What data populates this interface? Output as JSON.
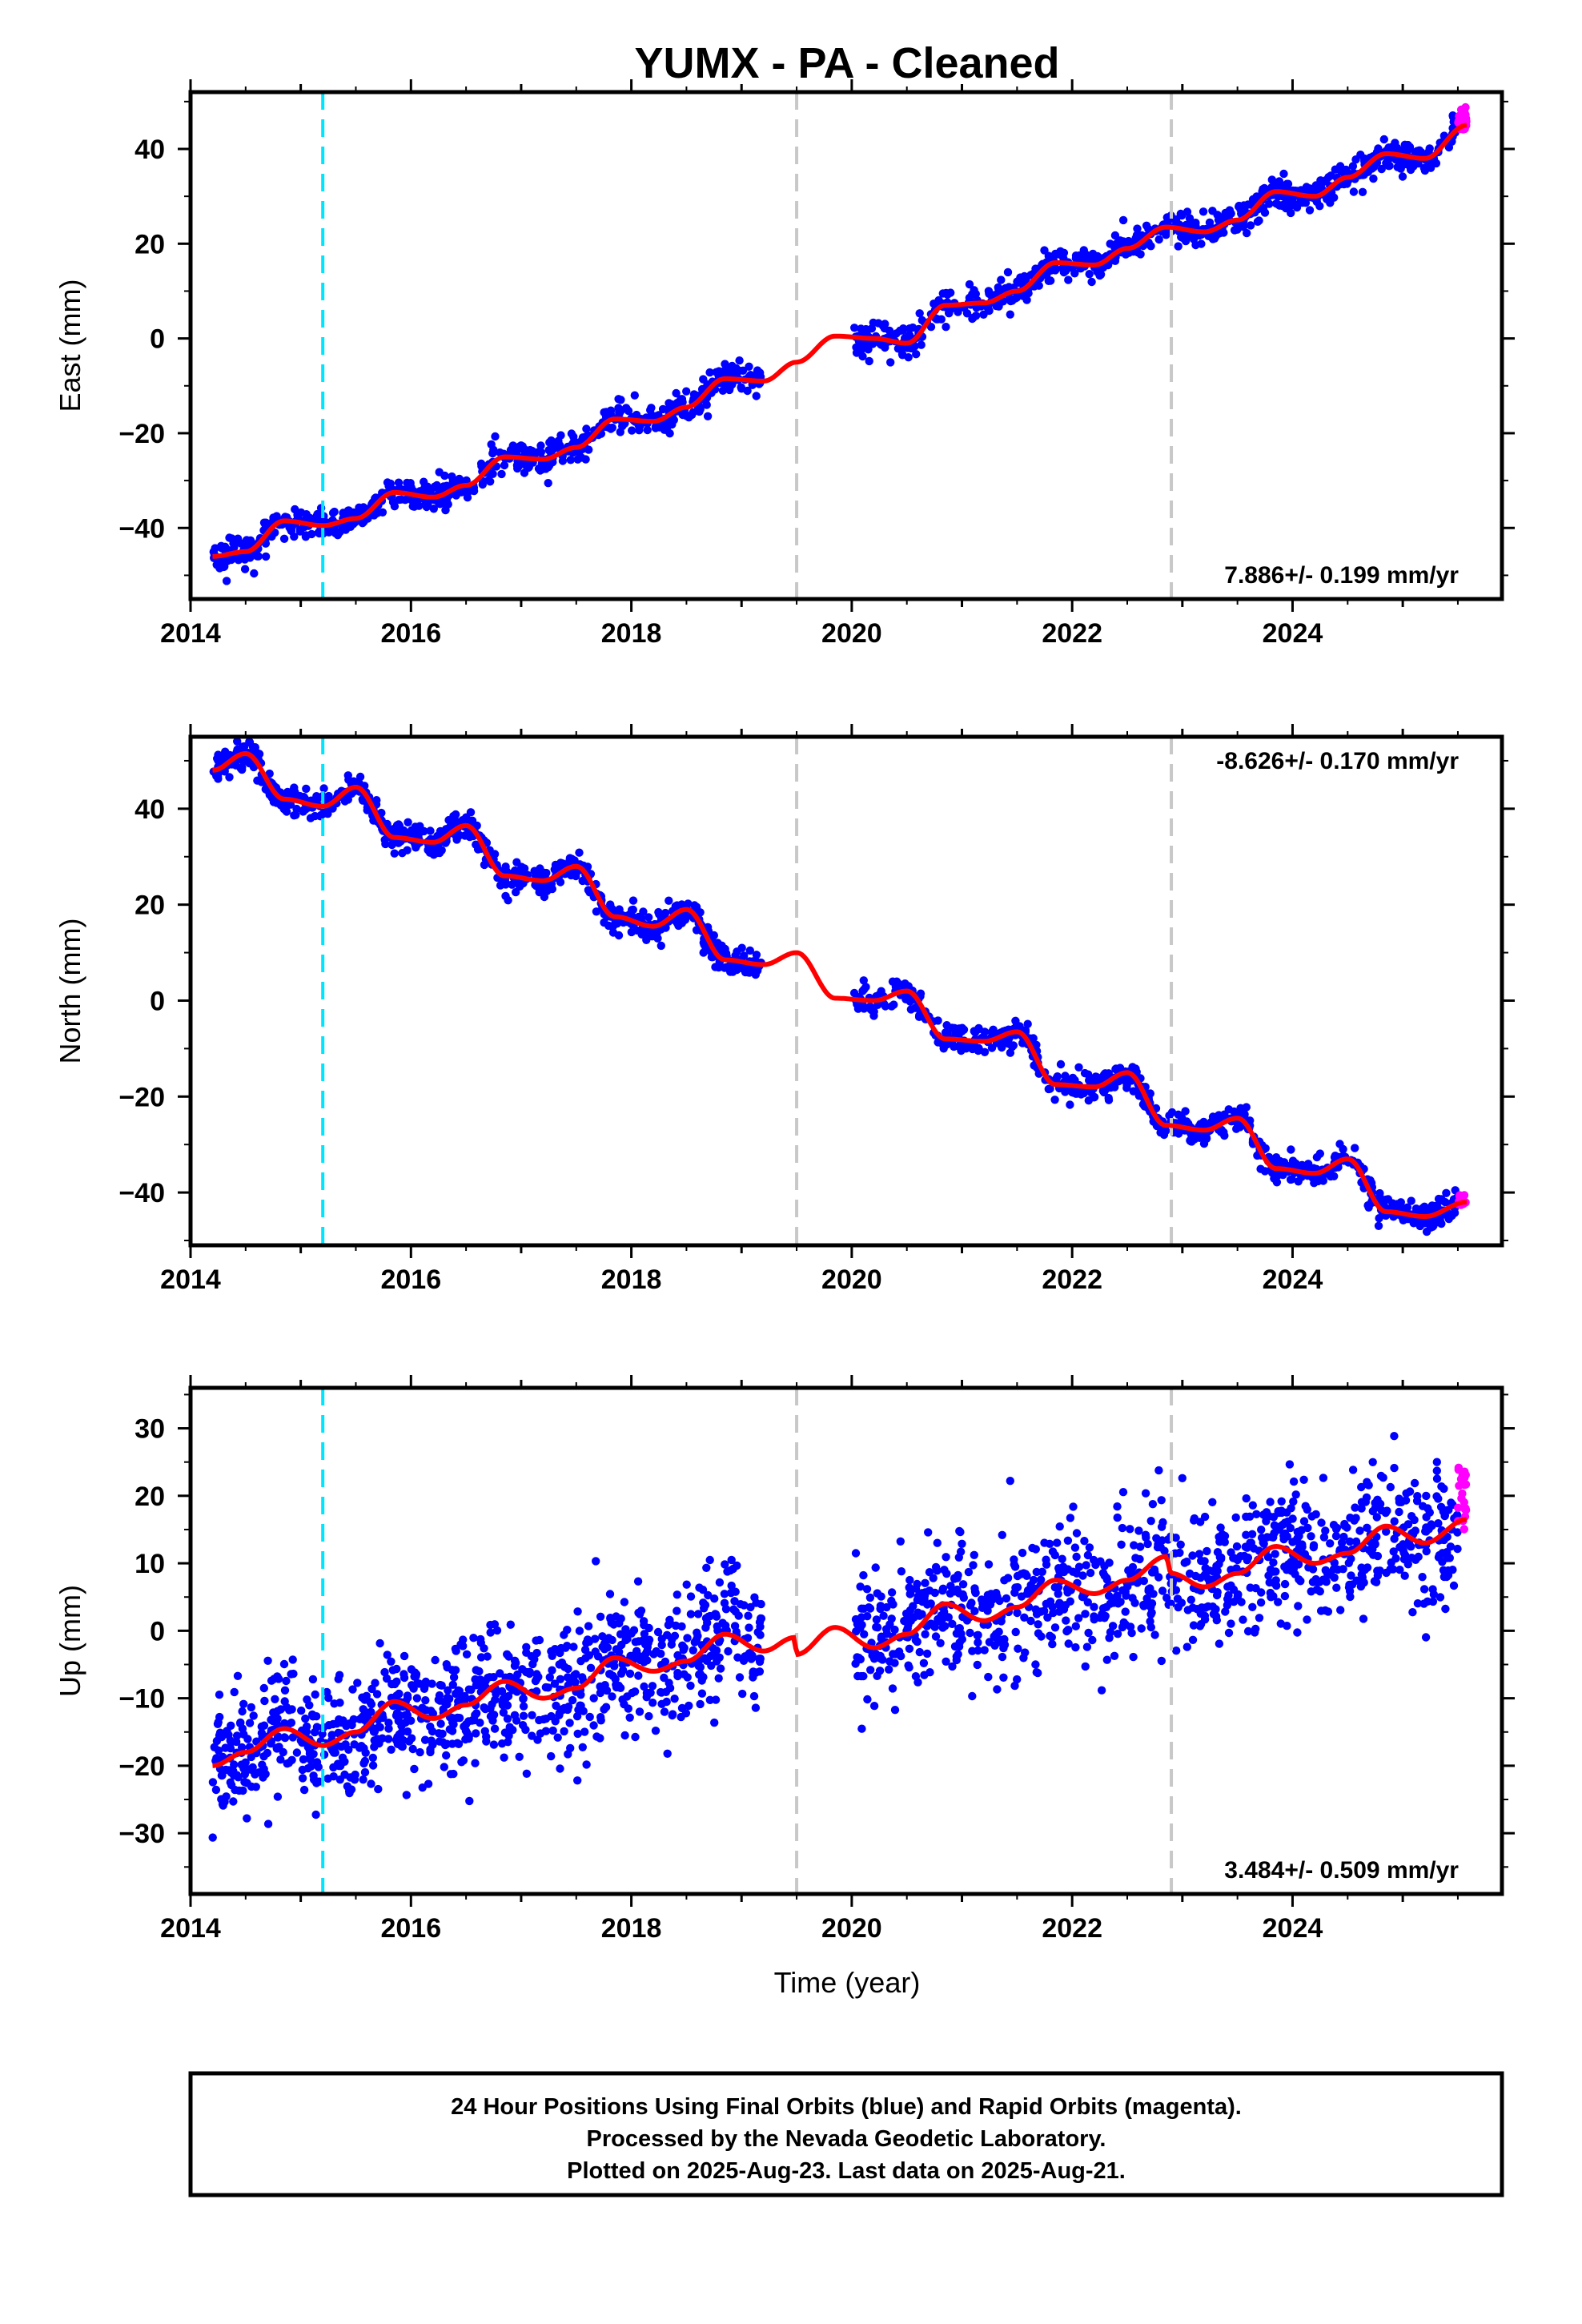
{
  "chart_data": [
    {
      "type": "scatter",
      "title": "YUMX  - PA - Cleaned",
      "ylabel": "East (mm)",
      "xlabel": "",
      "xlim": [
        2014.0,
        2025.9
      ],
      "ylim": [
        -55,
        52
      ],
      "x_ticks": [
        2014,
        2016,
        2018,
        2020,
        2022,
        2024
      ],
      "y_ticks": [
        -40,
        -20,
        0,
        20,
        40
      ],
      "rate_label": "7.886+/- 0.199 mm/yr",
      "rate_position": "bottom-right",
      "vertical_lines": [
        {
          "x": 2015.2,
          "color": "#00e5ff"
        },
        {
          "x": 2019.5,
          "color": "#c8c8c8"
        },
        {
          "x": 2022.9,
          "color": "#c8c8c8"
        }
      ],
      "model_curve": {
        "name": "model",
        "color": "#ff0000",
        "x": [
          2014.2,
          2014.5,
          2014.85,
          2015.2,
          2015.5,
          2015.85,
          2016.2,
          2016.5,
          2016.85,
          2017.2,
          2017.5,
          2017.85,
          2018.2,
          2018.5,
          2018.85,
          2019.2,
          2019.5,
          2019.85,
          2020.2,
          2020.5,
          2020.85,
          2021.2,
          2021.5,
          2021.85,
          2022.2,
          2022.5,
          2022.85,
          2023.2,
          2023.5,
          2023.85,
          2024.2,
          2024.5,
          2024.85,
          2025.2,
          2025.58
        ],
        "y": [
          -46,
          -45,
          -38.5,
          -39.5,
          -38,
          -32.5,
          -33.5,
          -31,
          -25,
          -25.5,
          -23,
          -17,
          -17.5,
          -14.5,
          -8.5,
          -9,
          -5,
          0.5,
          0,
          -1,
          7,
          7.5,
          10,
          16,
          15.5,
          19,
          23.5,
          22.5,
          25,
          31,
          30,
          34,
          39,
          38,
          45
        ]
      },
      "series": [
        {
          "name": "Final Orbits",
          "color": "#0000ff",
          "x_range": [
            2014.2,
            2025.5
          ]
        },
        {
          "name": "Rapid Orbits",
          "color": "#ff00ff",
          "x_range": [
            2025.5,
            2025.58
          ]
        }
      ]
    },
    {
      "type": "scatter",
      "title": "",
      "ylabel": "North (mm)",
      "xlabel": "",
      "xlim": [
        2014.0,
        2025.9
      ],
      "ylim": [
        -51,
        55
      ],
      "x_ticks": [
        2014,
        2016,
        2018,
        2020,
        2022,
        2024
      ],
      "y_ticks": [
        -40,
        -20,
        0,
        20,
        40
      ],
      "rate_label": "-8.626+/- 0.170 mm/yr",
      "rate_position": "top-right",
      "vertical_lines": [
        {
          "x": 2015.2,
          "color": "#00e5ff"
        },
        {
          "x": 2019.5,
          "color": "#c8c8c8"
        },
        {
          "x": 2022.9,
          "color": "#c8c8c8"
        }
      ],
      "model_curve": {
        "name": "model",
        "color": "#ff0000",
        "x": [
          2014.2,
          2014.5,
          2014.85,
          2015.2,
          2015.5,
          2015.85,
          2016.2,
          2016.5,
          2016.85,
          2017.2,
          2017.5,
          2017.85,
          2018.2,
          2018.5,
          2018.85,
          2019.2,
          2019.5,
          2019.85,
          2020.2,
          2020.5,
          2020.85,
          2021.2,
          2021.5,
          2021.85,
          2022.2,
          2022.5,
          2022.85,
          2023.2,
          2023.5,
          2023.85,
          2024.2,
          2024.5,
          2024.85,
          2025.2,
          2025.58
        ],
        "y": [
          48,
          51.5,
          42,
          40.5,
          44.5,
          34,
          33,
          36.5,
          26,
          25,
          28,
          17.5,
          15.5,
          19,
          8.5,
          7.5,
          10,
          0.5,
          0,
          2,
          -8,
          -8.5,
          -6.5,
          -17.5,
          -18,
          -15,
          -26,
          -27,
          -24.5,
          -35,
          -36,
          -33,
          -44,
          -45,
          -42
        ]
      },
      "series": [
        {
          "name": "Final Orbits",
          "color": "#0000ff",
          "x_range": [
            2014.2,
            2025.5
          ]
        },
        {
          "name": "Rapid Orbits",
          "color": "#ff00ff",
          "x_range": [
            2025.5,
            2025.58
          ]
        }
      ]
    },
    {
      "type": "scatter",
      "title": "",
      "ylabel": "Up (mm)",
      "xlabel": "Time (year)",
      "xlim": [
        2014.0,
        2025.9
      ],
      "ylim": [
        -39,
        36
      ],
      "x_ticks": [
        2014,
        2016,
        2018,
        2020,
        2022,
        2024
      ],
      "y_ticks": [
        -30,
        -20,
        -10,
        0,
        10,
        20,
        30
      ],
      "rate_label": "3.484+/- 0.509 mm/yr",
      "rate_position": "bottom-right",
      "vertical_lines": [
        {
          "x": 2015.2,
          "color": "#00e5ff"
        },
        {
          "x": 2019.5,
          "color": "#c8c8c8"
        },
        {
          "x": 2022.9,
          "color": "#c8c8c8"
        }
      ],
      "model_curve": {
        "name": "model",
        "color": "#ff0000",
        "x": [
          2014.2,
          2014.5,
          2014.85,
          2015.2,
          2015.5,
          2015.85,
          2016.2,
          2016.5,
          2016.85,
          2017.2,
          2017.5,
          2017.85,
          2018.2,
          2018.5,
          2018.85,
          2019.2,
          2019.48,
          2019.5,
          2019.85,
          2020.2,
          2020.5,
          2020.85,
          2021.2,
          2021.5,
          2021.85,
          2022.2,
          2022.5,
          2022.85,
          2022.9,
          2023.2,
          2023.5,
          2023.85,
          2024.2,
          2024.5,
          2024.85,
          2025.2,
          2025.58
        ],
        "y": [
          -20,
          -18,
          -14.5,
          -17,
          -15,
          -10.5,
          -13,
          -11,
          -7.5,
          -10,
          -8.5,
          -4,
          -6,
          -4.5,
          -0.5,
          -3,
          -1,
          -3.5,
          0.5,
          -2.5,
          -0.5,
          4,
          1.5,
          3.5,
          7.5,
          5.5,
          7.5,
          11,
          8.5,
          6.5,
          8.5,
          12.5,
          10,
          11.5,
          15.5,
          13,
          16.5
        ]
      },
      "series": [
        {
          "name": "Final Orbits",
          "color": "#0000ff",
          "x_range": [
            2014.2,
            2025.5
          ]
        },
        {
          "name": "Rapid Orbits",
          "color": "#ff00ff",
          "x_range": [
            2025.5,
            2025.58
          ]
        }
      ]
    }
  ],
  "caption": {
    "line1": "24 Hour Positions Using Final Orbits (blue) and Rapid Orbits (magenta).",
    "line2": "Processed by the Nevada Geodetic Laboratory.",
    "line3": "Plotted on 2025-Aug-23. Last data on 2025-Aug-21."
  }
}
